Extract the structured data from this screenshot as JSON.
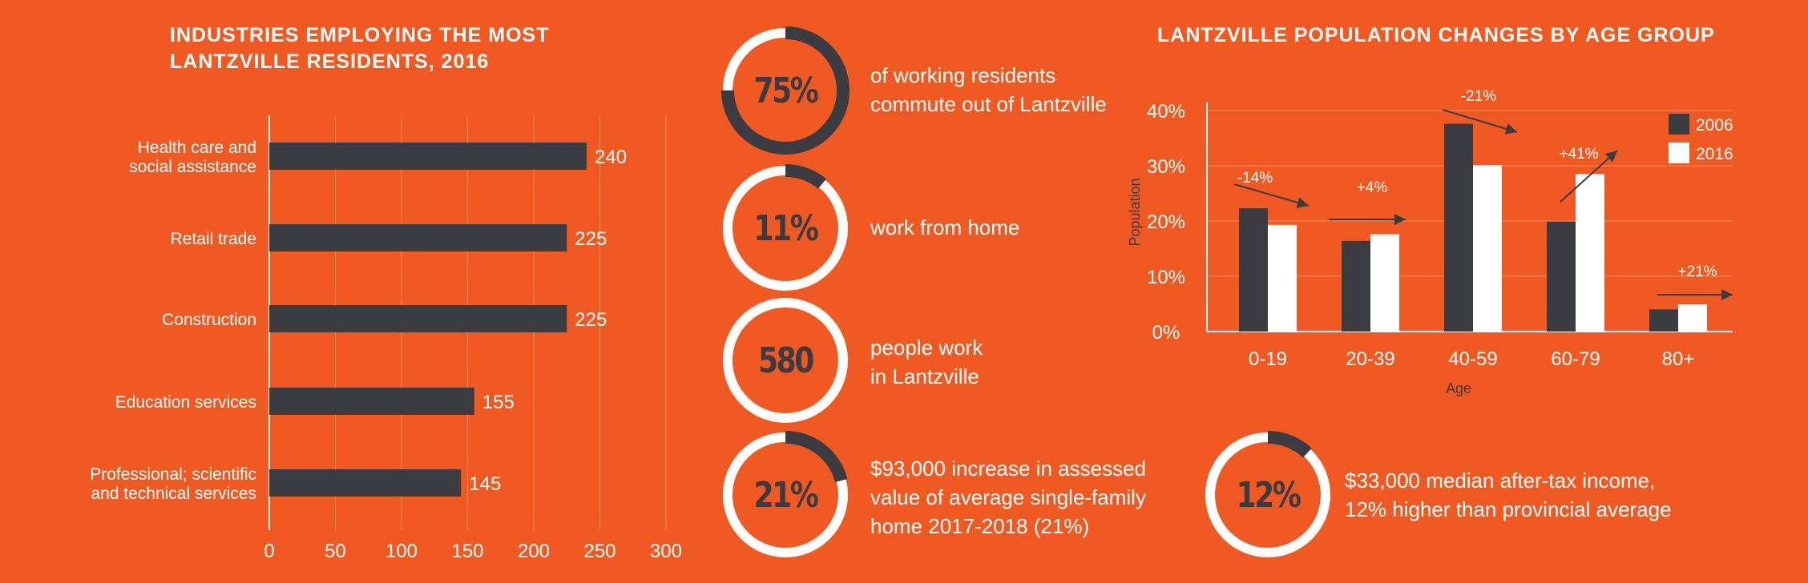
{
  "chart_data": [
    {
      "type": "bar",
      "orientation": "horizontal",
      "title": "INDUSTRIES EMPLOYING THE MOST LANTZVILLE RESIDENTS, 2016",
      "title_lines": [
        "INDUSTRIES EMPLOYING THE MOST",
        "LANTZVILLE RESIDENTS, 2016"
      ],
      "categories": [
        [
          "Health care and",
          "social assistance"
        ],
        [
          "Retail trade"
        ],
        [
          "Construction"
        ],
        [
          "Education services"
        ],
        [
          "Professional; scientific",
          "and technical services"
        ]
      ],
      "values": [
        240,
        225,
        225,
        155,
        145
      ],
      "xlim": [
        0,
        300
      ],
      "xticks": [
        0,
        50,
        100,
        150,
        200,
        250,
        300
      ],
      "grid": true,
      "bar_color": "#3b3b42"
    },
    {
      "type": "bar",
      "title": "LANTZVILLE POPULATION CHANGES BY AGE GROUP",
      "xlabel": "Age",
      "ylabel": "Population",
      "categories": [
        "0-19",
        "20-39",
        "40-59",
        "60-79",
        "80+"
      ],
      "series": [
        {
          "name": "2006",
          "values": [
            22.3,
            16.4,
            37.6,
            19.9,
            4.0
          ],
          "color": "#3b3b42"
        },
        {
          "name": "2016",
          "values": [
            19.3,
            17.6,
            30.1,
            28.5,
            4.9
          ],
          "color": "#ffffff"
        }
      ],
      "ylim": [
        0,
        40
      ],
      "yticks": [
        "0%",
        "10%",
        "20%",
        "30%",
        "40%"
      ],
      "legend": "top-right",
      "grid": true,
      "annotations": [
        "-14%",
        "+4%",
        "-21%",
        "+41%",
        "+21%"
      ]
    }
  ],
  "stats": [
    {
      "value": "75%",
      "fraction": 0.75,
      "text": [
        "of working residents",
        "commute out of Lantzville"
      ]
    },
    {
      "value": "11%",
      "fraction": 0.11,
      "text": [
        "work from home"
      ]
    },
    {
      "value": "580",
      "fraction": 0,
      "text": [
        "people work",
        "in Lantzville"
      ]
    },
    {
      "value": "21%",
      "fraction": 0.21,
      "text": [
        "$93,000 increase in assessed",
        "value of average single-family",
        "home 2017-2018 (21%)"
      ]
    },
    {
      "value": "12%",
      "fraction": 0.12,
      "text": [
        "$33,000 median after-tax income,",
        "12% higher than provincial average"
      ]
    }
  ],
  "colors": {
    "background": "#f05a22",
    "dark": "#3b3b42",
    "light": "#ffffff"
  }
}
